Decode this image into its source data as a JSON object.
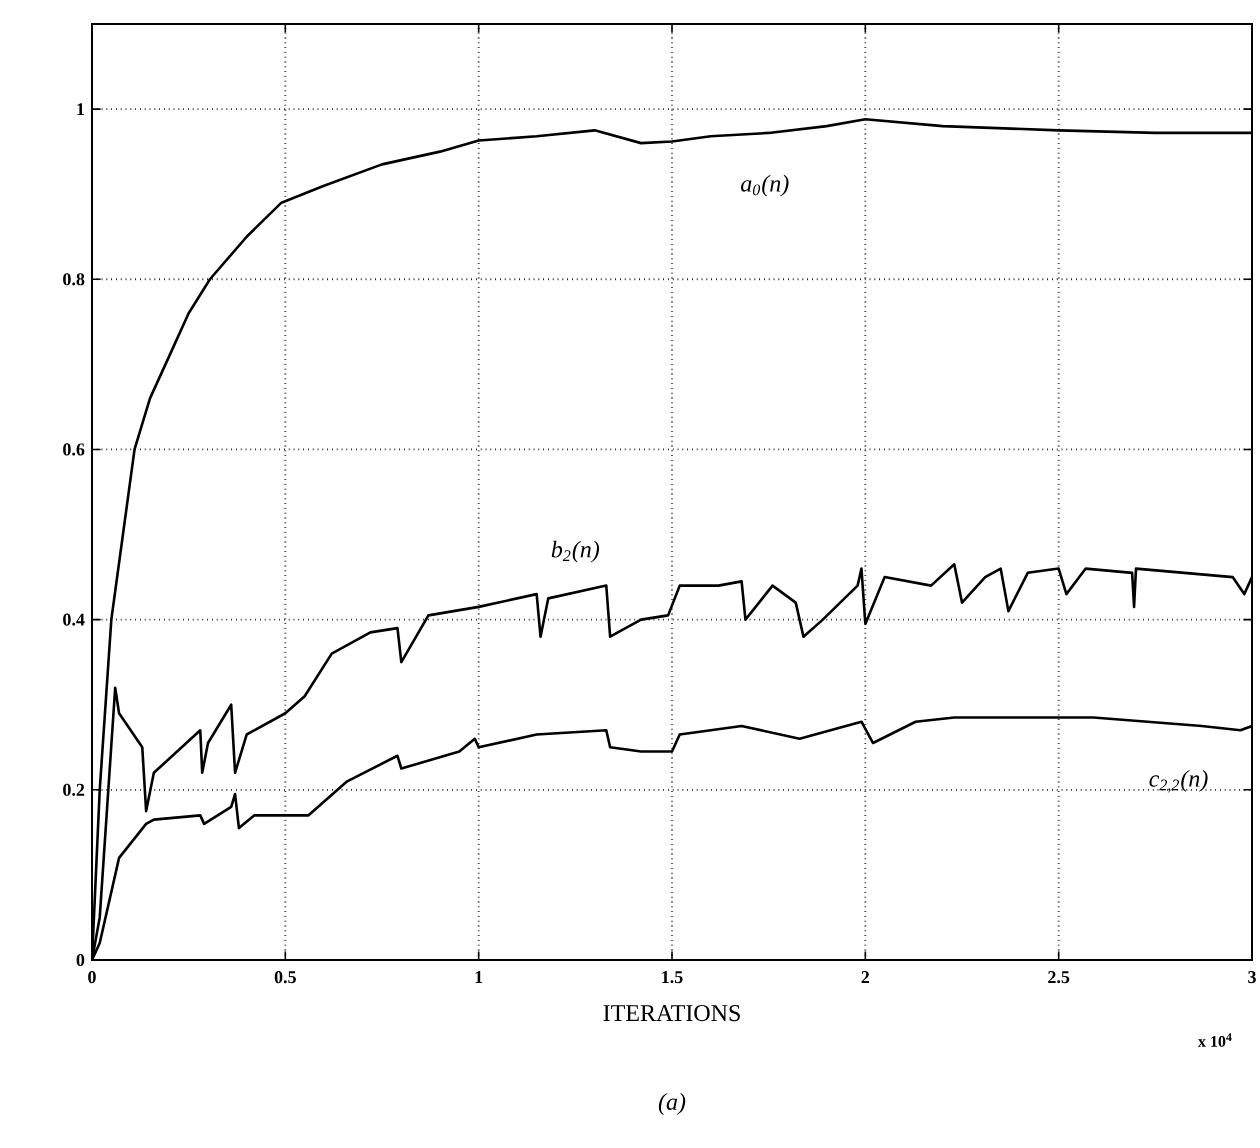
{
  "chart_data": {
    "type": "line",
    "xlabel": "ITERATIONS",
    "annotations": [
      "x 10$^{4}$",
      "(a)"
    ],
    "xlim": [
      0,
      3
    ],
    "ylim": [
      0,
      1.1
    ],
    "xticks": [
      0,
      0.5,
      1,
      1.5,
      2,
      2.5,
      3
    ],
    "yticks": [
      0,
      0.2,
      0.4,
      0.6,
      0.8,
      1
    ],
    "grid": true,
    "series": [
      {
        "name": "a$_{0}$(n)",
        "color": "#000000",
        "x": [
          0,
          0.02,
          0.05,
          0.08,
          0.11,
          0.15,
          0.2,
          0.25,
          0.305,
          0.4,
          0.49,
          0.6,
          0.75,
          0.9,
          1.0,
          1.15,
          1.3,
          1.42,
          1.5,
          1.6,
          1.75,
          1.9,
          2.0,
          2.2,
          2.5,
          2.75,
          3.0
        ],
        "values": [
          0,
          0.2,
          0.4,
          0.5,
          0.6,
          0.66,
          0.71,
          0.76,
          0.8,
          0.85,
          0.89,
          0.91,
          0.935,
          0.95,
          0.963,
          0.968,
          0.975,
          0.96,
          0.962,
          0.968,
          0.972,
          0.98,
          0.988,
          0.98,
          0.975,
          0.972,
          0.972
        ]
      },
      {
        "name": "b$_{2}$(n)",
        "color": "#000000",
        "x": [
          0,
          0.02,
          0.06,
          0.07,
          0.13,
          0.14,
          0.16,
          0.28,
          0.285,
          0.3,
          0.36,
          0.37,
          0.4,
          0.5,
          0.55,
          0.62,
          0.72,
          0.79,
          0.8,
          0.87,
          1.0,
          1.15,
          1.16,
          1.18,
          1.33,
          1.34,
          1.42,
          1.49,
          1.52,
          1.62,
          1.68,
          1.69,
          1.76,
          1.82,
          1.84,
          1.89,
          1.98,
          1.99,
          2.0,
          2.05,
          2.17,
          2.23,
          2.25,
          2.31,
          2.35,
          2.37,
          2.42,
          2.5,
          2.52,
          2.57,
          2.69,
          2.695,
          2.7,
          2.95,
          2.98,
          3.0
        ],
        "values": [
          0,
          0.05,
          0.32,
          0.29,
          0.25,
          0.175,
          0.22,
          0.27,
          0.22,
          0.255,
          0.3,
          0.22,
          0.265,
          0.29,
          0.31,
          0.36,
          0.385,
          0.39,
          0.35,
          0.405,
          0.415,
          0.43,
          0.38,
          0.425,
          0.44,
          0.38,
          0.4,
          0.405,
          0.44,
          0.44,
          0.445,
          0.4,
          0.44,
          0.42,
          0.38,
          0.4,
          0.44,
          0.46,
          0.395,
          0.45,
          0.44,
          0.465,
          0.42,
          0.45,
          0.46,
          0.41,
          0.455,
          0.46,
          0.43,
          0.46,
          0.455,
          0.415,
          0.46,
          0.45,
          0.43,
          0.45
        ]
      },
      {
        "name": "c$_{2,2}$(n)",
        "color": "#000000",
        "x": [
          0,
          0.02,
          0.07,
          0.14,
          0.16,
          0.28,
          0.29,
          0.36,
          0.37,
          0.38,
          0.42,
          0.56,
          0.66,
          0.79,
          0.8,
          0.95,
          0.99,
          1.0,
          1.15,
          1.33,
          1.34,
          1.42,
          1.5,
          1.52,
          1.68,
          1.83,
          1.99,
          2.02,
          2.13,
          2.23,
          2.35,
          2.59,
          2.87,
          2.97,
          3.0
        ],
        "values": [
          0,
          0.02,
          0.12,
          0.16,
          0.165,
          0.17,
          0.16,
          0.18,
          0.195,
          0.155,
          0.17,
          0.17,
          0.21,
          0.24,
          0.225,
          0.245,
          0.26,
          0.25,
          0.265,
          0.27,
          0.25,
          0.245,
          0.245,
          0.265,
          0.275,
          0.26,
          0.28,
          0.255,
          0.28,
          0.285,
          0.285,
          0.285,
          0.275,
          0.27,
          0.275
        ]
      }
    ]
  }
}
